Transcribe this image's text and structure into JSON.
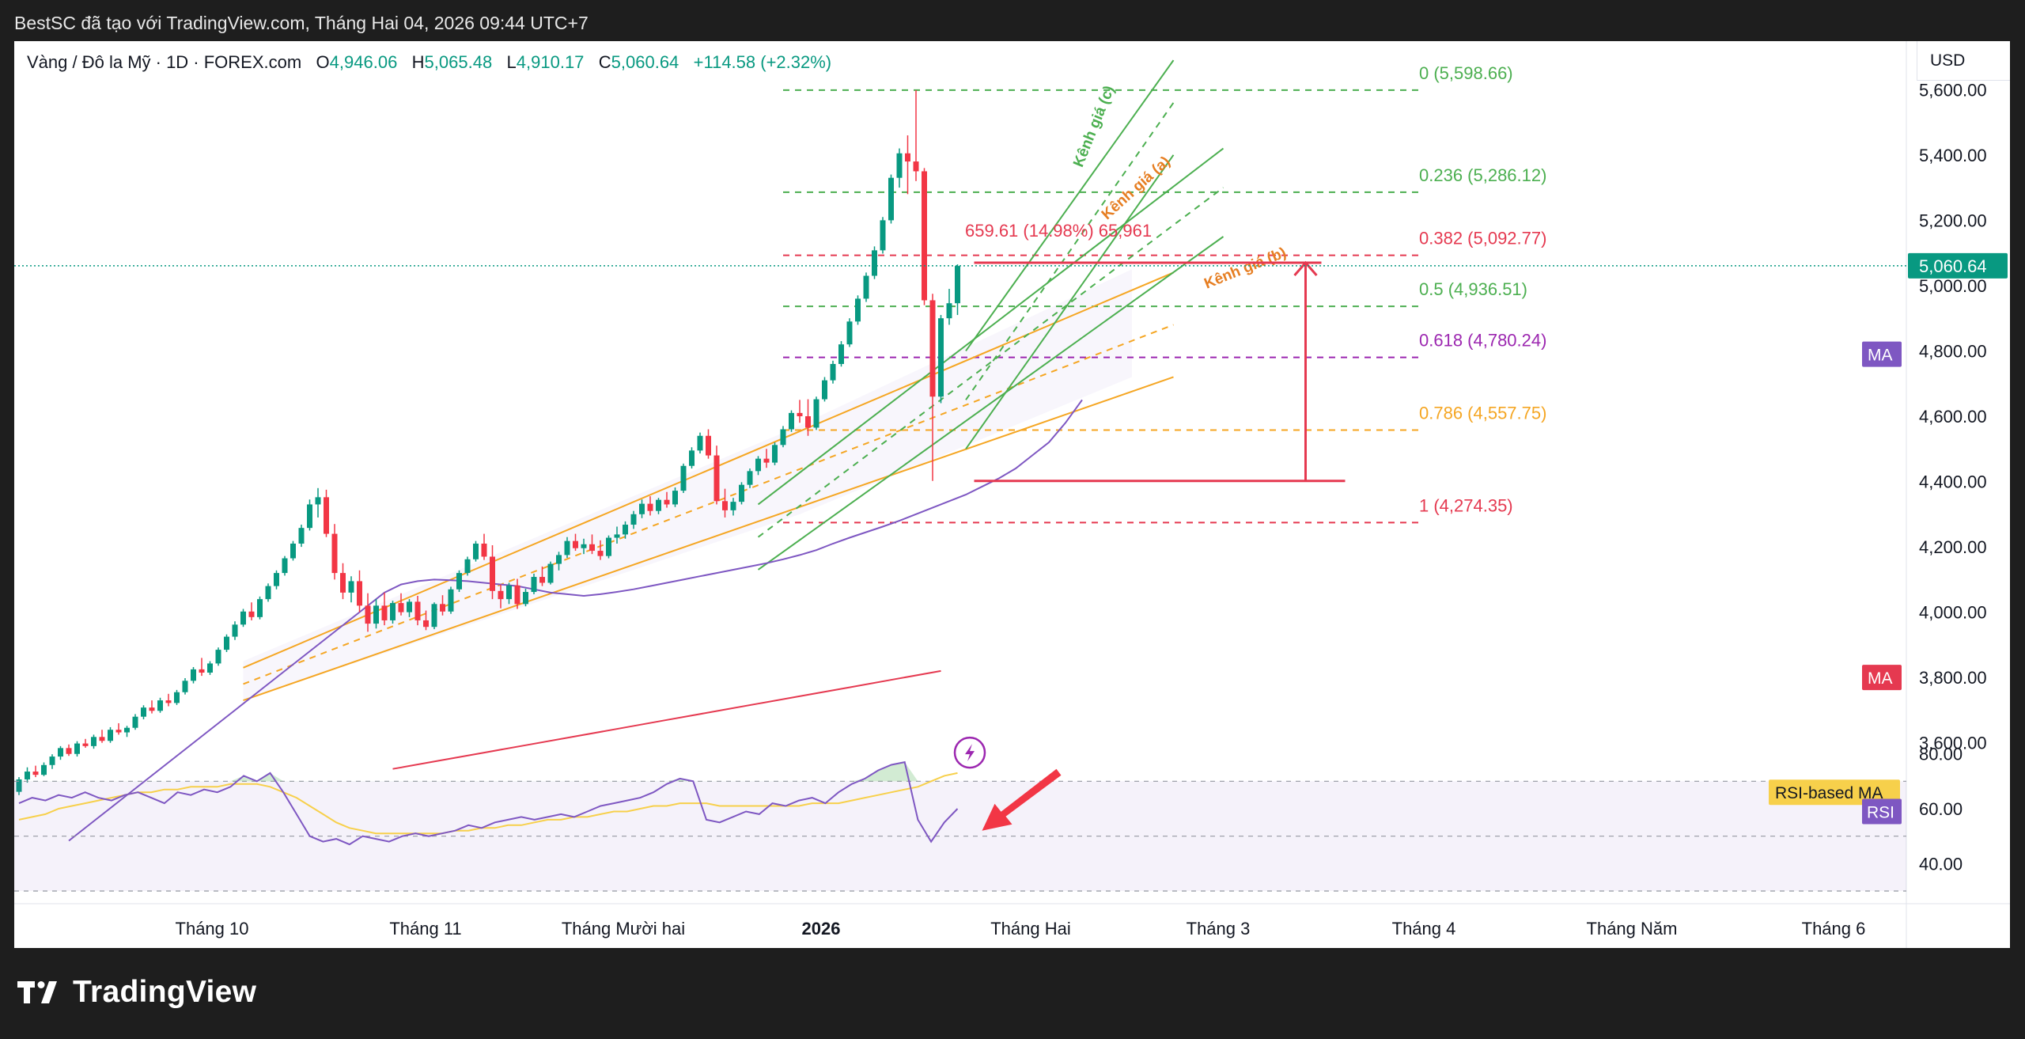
{
  "header": {
    "watermark_text": "BestSC đã tạo với TradingView.com, Tháng Hai 04, 2026 09:44 UTC+7"
  },
  "legend": {
    "symbol": "Vàng / Đô la Mỹ · 1D · FOREX.com",
    "o_label": "O",
    "o": "4,946.06",
    "h_label": "H",
    "h": "5,065.48",
    "l_label": "L",
    "l": "4,910.17",
    "c_label": "C",
    "c": "5,060.64",
    "change": "+114.58 (+2.32%)"
  },
  "currency_button": "USD",
  "colors": {
    "up": "#089981",
    "down": "#f23645",
    "ma_short": "#7e57c2",
    "ma_long": "#e53950",
    "channel_orange": "#f5a623",
    "channel_green": "#4caf50",
    "rsi": "#7e57c2",
    "rsi_ma": "#f7d04b"
  },
  "tags": {
    "ma1": "MA",
    "ma2": "MA",
    "rsi_ma": "RSI-based MA",
    "rsi": "RSI",
    "last_price": "5,060.64"
  },
  "annotations": {
    "channel_a": "Kênh giá (a)",
    "channel_b": "Kênh giá (b)",
    "channel_c": "Kênh giá (c)",
    "measure": "659.61 (14.98%) 65,961"
  },
  "fib_levels": [
    {
      "label": "0 (5,598.66)",
      "price": 5598.66,
      "color": "#4caf50"
    },
    {
      "label": "0.236 (5,286.12)",
      "price": 5286.12,
      "color": "#4caf50"
    },
    {
      "label": "0.382 (5,092.77)",
      "price": 5092.77,
      "color": "#e53950"
    },
    {
      "label": "0.5 (4,936.51)",
      "price": 4936.51,
      "color": "#4caf50"
    },
    {
      "label": "0.618 (4,780.24)",
      "price": 4780.24,
      "color": "#9c27b0"
    },
    {
      "label": "0.786 (4,557.75)",
      "price": 4557.75,
      "color": "#f5a623"
    },
    {
      "label": "1 (4,274.35)",
      "price": 4274.35,
      "color": "#e53950"
    }
  ],
  "chart_data": {
    "type": "candlestick",
    "title": "",
    "price_axis_ticks": [
      "5,600.00",
      "5,400.00",
      "5,200.00",
      "5,000.00",
      "4,800.00",
      "4,600.00",
      "4,400.00",
      "4,200.00",
      "4,000.00",
      "3,800.00",
      "3,600.00"
    ],
    "price_tick_values": [
      5600,
      5400,
      5200,
      5000,
      4800,
      4600,
      4400,
      4200,
      4000,
      3800,
      3600
    ],
    "price_ylim": [
      3500,
      5700
    ],
    "rsi_axis_ticks": [
      "80.00",
      "60.00",
      "40.00"
    ],
    "rsi_tick_values": [
      80,
      60,
      40
    ],
    "rsi_ylim": [
      30,
      90
    ],
    "rsi_bands": {
      "upper": 70,
      "middle": 50,
      "lower": 30
    },
    "time_labels": [
      "Tháng 10",
      "Tháng 11",
      "Tháng Mười hai",
      "2026",
      "Tháng Hai",
      "Tháng 3",
      "Tháng 4",
      "Tháng Năm",
      "Tháng 6"
    ],
    "candles_ohlc": [
      [
        3450,
        3495,
        3440,
        3488
      ],
      [
        3488,
        3525,
        3478,
        3512
      ],
      [
        3512,
        3530,
        3495,
        3502
      ],
      [
        3502,
        3540,
        3498,
        3532
      ],
      [
        3532,
        3565,
        3520,
        3558
      ],
      [
        3558,
        3590,
        3548,
        3584
      ],
      [
        3584,
        3595,
        3560,
        3566
      ],
      [
        3566,
        3605,
        3558,
        3598
      ],
      [
        3598,
        3612,
        3585,
        3590
      ],
      [
        3590,
        3625,
        3582,
        3618
      ],
      [
        3618,
        3640,
        3600,
        3606
      ],
      [
        3606,
        3648,
        3600,
        3640
      ],
      [
        3640,
        3660,
        3625,
        3632
      ],
      [
        3632,
        3652,
        3618,
        3646
      ],
      [
        3646,
        3688,
        3640,
        3680
      ],
      [
        3680,
        3715,
        3672,
        3708
      ],
      [
        3708,
        3730,
        3690,
        3698
      ],
      [
        3698,
        3738,
        3692,
        3730
      ],
      [
        3730,
        3750,
        3712,
        3722
      ],
      [
        3722,
        3762,
        3716,
        3755
      ],
      [
        3755,
        3798,
        3748,
        3790
      ],
      [
        3790,
        3832,
        3782,
        3825
      ],
      [
        3825,
        3860,
        3805,
        3815
      ],
      [
        3815,
        3850,
        3808,
        3843
      ],
      [
        3843,
        3892,
        3836,
        3885
      ],
      [
        3885,
        3932,
        3878,
        3925
      ],
      [
        3925,
        3972,
        3915,
        3962
      ],
      [
        3962,
        4010,
        3955,
        4002
      ],
      [
        4002,
        4030,
        3975,
        3985
      ],
      [
        3985,
        4048,
        3978,
        4040
      ],
      [
        4040,
        4088,
        4032,
        4080
      ],
      [
        4080,
        4128,
        4070,
        4120
      ],
      [
        4120,
        4172,
        4112,
        4165
      ],
      [
        4165,
        4218,
        4158,
        4210
      ],
      [
        4210,
        4268,
        4200,
        4258
      ],
      [
        4258,
        4345,
        4250,
        4330
      ],
      [
        4330,
        4380,
        4290,
        4352
      ],
      [
        4352,
        4375,
        4230,
        4240
      ],
      [
        4240,
        4270,
        4100,
        4120
      ],
      [
        4120,
        4150,
        4040,
        4060
      ],
      [
        4060,
        4110,
        4030,
        4095
      ],
      [
        4095,
        4128,
        4000,
        4020
      ],
      [
        4020,
        4058,
        3940,
        3965
      ],
      [
        3965,
        4040,
        3950,
        4020
      ],
      [
        4020,
        4060,
        3960,
        3975
      ],
      [
        3975,
        4035,
        3965,
        4028
      ],
      [
        4028,
        4058,
        3990,
        4000
      ],
      [
        4000,
        4040,
        3985,
        4032
      ],
      [
        4032,
        4050,
        3960,
        3975
      ],
      [
        3975,
        4005,
        3945,
        3955
      ],
      [
        3955,
        4030,
        3948,
        4025
      ],
      [
        4025,
        4052,
        3990,
        4002
      ],
      [
        4002,
        4078,
        3995,
        4070
      ],
      [
        4070,
        4128,
        4062,
        4120
      ],
      [
        4120,
        4170,
        4112,
        4162
      ],
      [
        4162,
        4218,
        4155,
        4210
      ],
      [
        4210,
        4240,
        4160,
        4170
      ],
      [
        4170,
        4205,
        4040,
        4065
      ],
      [
        4065,
        4085,
        4012,
        4040
      ],
      [
        4040,
        4090,
        4025,
        4082
      ],
      [
        4082,
        4102,
        4010,
        4025
      ],
      [
        4025,
        4072,
        4018,
        4062
      ],
      [
        4062,
        4118,
        4055,
        4108
      ],
      [
        4108,
        4140,
        4080,
        4090
      ],
      [
        4090,
        4155,
        4085,
        4148
      ],
      [
        4148,
        4185,
        4128,
        4175
      ],
      [
        4175,
        4230,
        4166,
        4218
      ],
      [
        4218,
        4240,
        4188,
        4196
      ],
      [
        4196,
        4225,
        4178,
        4208
      ],
      [
        4208,
        4238,
        4178,
        4188
      ],
      [
        4188,
        4220,
        4160,
        4172
      ],
      [
        4172,
        4235,
        4165,
        4228
      ],
      [
        4228,
        4262,
        4210,
        4238
      ],
      [
        4238,
        4278,
        4225,
        4268
      ],
      [
        4268,
        4310,
        4255,
        4300
      ],
      [
        4300,
        4345,
        4288,
        4332
      ],
      [
        4332,
        4355,
        4296,
        4310
      ],
      [
        4310,
        4350,
        4300,
        4344
      ],
      [
        4344,
        4368,
        4320,
        4330
      ],
      [
        4330,
        4382,
        4322,
        4372
      ],
      [
        4372,
        4455,
        4365,
        4448
      ],
      [
        4448,
        4505,
        4440,
        4495
      ],
      [
        4495,
        4550,
        4486,
        4540
      ],
      [
        4540,
        4560,
        4470,
        4480
      ],
      [
        4480,
        4510,
        4330,
        4340
      ],
      [
        4340,
        4378,
        4290,
        4312
      ],
      [
        4312,
        4350,
        4296,
        4338
      ],
      [
        4338,
        4398,
        4330,
        4390
      ],
      [
        4390,
        4440,
        4380,
        4432
      ],
      [
        4432,
        4478,
        4420,
        4470
      ],
      [
        4470,
        4500,
        4442,
        4458
      ],
      [
        4458,
        4520,
        4450,
        4512
      ],
      [
        4512,
        4570,
        4505,
        4560
      ],
      [
        4560,
        4618,
        4552,
        4610
      ],
      [
        4610,
        4650,
        4580,
        4600
      ],
      [
        4600,
        4652,
        4540,
        4565
      ],
      [
        4565,
        4660,
        4558,
        4652
      ],
      [
        4652,
        4720,
        4645,
        4710
      ],
      [
        4710,
        4770,
        4700,
        4760
      ],
      [
        4760,
        4830,
        4752,
        4820
      ],
      [
        4820,
        4900,
        4812,
        4890
      ],
      [
        4890,
        4970,
        4880,
        4960
      ],
      [
        4960,
        5040,
        4950,
        5030
      ],
      [
        5030,
        5120,
        5020,
        5108
      ],
      [
        5108,
        5210,
        5098,
        5200
      ],
      [
        5200,
        5340,
        5190,
        5330
      ],
      [
        5330,
        5420,
        5300,
        5405
      ],
      [
        5405,
        5460,
        5280,
        5380
      ],
      [
        5380,
        5598,
        5320,
        5350
      ],
      [
        5350,
        5360,
        4940,
        4955
      ],
      [
        4955,
        4975,
        4402,
        4660
      ],
      [
        4660,
        4910,
        4640,
        4900
      ],
      [
        4900,
        4990,
        4880,
        4946
      ],
      [
        4946,
        5065,
        4910,
        5060
      ]
    ],
    "ma_short": [
      3300,
      3340,
      3380,
      3420,
      3460,
      3500,
      3540,
      3580,
      3620,
      3660,
      3700,
      3740,
      3780,
      3820,
      3860,
      3900,
      3940,
      3980,
      4020,
      4060,
      4085,
      4095,
      4100,
      4098,
      4095,
      4090,
      4085,
      4080,
      4070,
      4060,
      4055,
      4050,
      4055,
      4062,
      4070,
      4080,
      4090,
      4100,
      4110,
      4120,
      4130,
      4140,
      4150,
      4162,
      4175,
      4190,
      4210,
      4228,
      4245,
      4262,
      4280,
      4300,
      4320,
      4340,
      4360,
      4385,
      4410,
      4440,
      4480,
      4520,
      4580,
      4650
    ],
    "ma_long": [
      3520,
      3545,
      3570,
      3595,
      3620,
      3645,
      3670,
      3695,
      3720,
      3745,
      3770,
      3795,
      3820
    ],
    "rsi": [
      62,
      64,
      63,
      65,
      64,
      66,
      64,
      63,
      65,
      66,
      64,
      62,
      66,
      65,
      67,
      66,
      68,
      72,
      70,
      73,
      66,
      58,
      50,
      48,
      49,
      47,
      50,
      49,
      48,
      50,
      51,
      50,
      51,
      52,
      54,
      53,
      55,
      56,
      57,
      56,
      57,
      58,
      57,
      59,
      61,
      62,
      63,
      64,
      66,
      69,
      71,
      70,
      56,
      55,
      57,
      59,
      58,
      62,
      61,
      63,
      64,
      62,
      66,
      69,
      71,
      74,
      76,
      77,
      56,
      48,
      55,
      60
    ],
    "rsi_ma": [
      56,
      57,
      58,
      60,
      61,
      62,
      63,
      64,
      65,
      66,
      66,
      67,
      67,
      68,
      68,
      68,
      69,
      69,
      69,
      68,
      66,
      64,
      61,
      58,
      55,
      53,
      52,
      51,
      51,
      51,
      51,
      51,
      51,
      52,
      52,
      53,
      53,
      54,
      54,
      55,
      56,
      56,
      57,
      57,
      58,
      59,
      59,
      60,
      61,
      61,
      62,
      62,
      62,
      61,
      61,
      61,
      61,
      61,
      61,
      61,
      62,
      62,
      62,
      63,
      64,
      65,
      66,
      67,
      68,
      70,
      72,
      73
    ]
  }
}
